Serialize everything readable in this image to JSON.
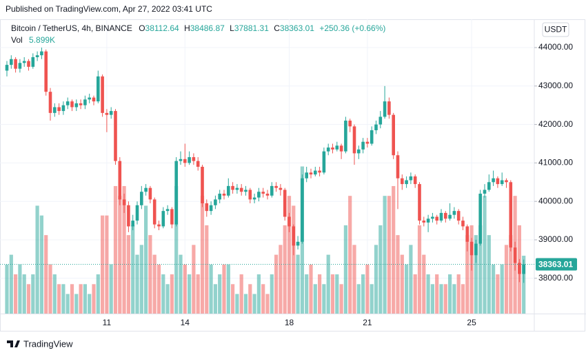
{
  "header": {
    "published": "Published on TradingView.com, Apr 27, 2022 03:41 UTC",
    "logo": "TradingView"
  },
  "chart_data": {
    "type": "candlestick",
    "title": "Bitcoin / TetherUS, 4h, BINANCE",
    "ohlc_letters": {
      "open": "O",
      "high": "H",
      "low": "L",
      "close": "C"
    },
    "change_label": "+250.36 (+0.66%)",
    "vol_legend": {
      "label": "Vol",
      "value_label": "5.899K"
    },
    "currency": "USDT",
    "up_color": "#26a69a",
    "down_color": "#ef5350",
    "open": [
      43400,
      43550,
      43700,
      43450,
      43600,
      43650,
      43500,
      43750,
      43800,
      43900,
      42850,
      42300,
      42450,
      42350,
      42500,
      42600,
      42450,
      42550,
      42500,
      42650,
      42700,
      42600,
      43250,
      42300,
      42250,
      42350,
      41050,
      40050,
      39900,
      39350,
      39500,
      39900,
      40250,
      40350,
      40050,
      39400,
      39350,
      39750,
      39800,
      39400,
      41050,
      41100,
      41000,
      41150,
      41050,
      40900,
      39950,
      39750,
      39900,
      40050,
      40200,
      40150,
      40400,
      40300,
      40350,
      40250,
      40300,
      40050,
      40100,
      40250,
      40200,
      40150,
      40400,
      40350,
      40300,
      39600,
      39350,
      38850,
      38950,
      40600,
      40750,
      40700,
      40800,
      40750,
      41300,
      41400,
      41350,
      41450,
      41300,
      42100,
      41950,
      41250,
      41350,
      41550,
      41500,
      41850,
      42000,
      42200,
      42600,
      42250,
      41200,
      40600,
      40450,
      40550,
      40650,
      40450,
      39500,
      39450,
      39550,
      39600,
      39500,
      39700,
      39550,
      39650,
      39750,
      39500,
      39350,
      38950,
      38600,
      38900,
      40200,
      40300,
      40500,
      40600,
      40450,
      40550,
      40500,
      38800,
      38400,
      38112.64
    ],
    "high": [
      43650,
      43800,
      43750,
      43700,
      43750,
      43700,
      43850,
      43900,
      44000,
      43950,
      42950,
      42550,
      42550,
      42600,
      42700,
      42650,
      42650,
      42650,
      42750,
      42800,
      42750,
      43400,
      43300,
      42400,
      42450,
      42400,
      41150,
      40200,
      40000,
      39650,
      40000,
      40400,
      40450,
      40400,
      40100,
      39500,
      39850,
      39900,
      39850,
      41150,
      41300,
      41500,
      41300,
      41250,
      41150,
      40950,
      40050,
      40000,
      40150,
      40300,
      40300,
      40600,
      40500,
      40450,
      40450,
      40400,
      40350,
      40200,
      40350,
      40350,
      40300,
      40500,
      40500,
      40450,
      40350,
      39700,
      39400,
      39100,
      40700,
      40900,
      40850,
      40900,
      40900,
      41400,
      41500,
      41500,
      41550,
      41500,
      42200,
      42150,
      42000,
      41450,
      41650,
      41650,
      41950,
      42100,
      42350,
      43000,
      42700,
      42300,
      41300,
      40700,
      40650,
      40750,
      40700,
      40500,
      39600,
      39650,
      39700,
      39650,
      39800,
      39750,
      39950,
      39850,
      39800,
      39600,
      39400,
      39050,
      39000,
      40300,
      40450,
      40700,
      40800,
      40650,
      40750,
      40600,
      40550,
      38950,
      38500,
      38486.87
    ],
    "low": [
      43250,
      43450,
      43350,
      43350,
      43500,
      43400,
      43450,
      43650,
      43700,
      42750,
      42100,
      42200,
      42250,
      42250,
      42400,
      42350,
      42350,
      42400,
      42400,
      42550,
      42500,
      42550,
      42200,
      41800,
      42150,
      40950,
      39900,
      39700,
      39200,
      39250,
      39400,
      39800,
      40150,
      39950,
      39300,
      39250,
      39300,
      39650,
      39300,
      39350,
      40950,
      40900,
      40950,
      40950,
      40800,
      39850,
      39600,
      39650,
      39800,
      39950,
      40050,
      40100,
      40200,
      40200,
      40150,
      40150,
      39950,
      39950,
      40000,
      40100,
      40050,
      40100,
      40250,
      40150,
      39500,
      39200,
      38600,
      38750,
      38900,
      40500,
      40600,
      40650,
      40650,
      40700,
      41200,
      41250,
      41300,
      41100,
      41250,
      41800,
      40950,
      41100,
      41250,
      41400,
      41450,
      41750,
      41900,
      42150,
      42150,
      41100,
      39800,
      40300,
      40350,
      40450,
      40350,
      39400,
      39350,
      39200,
      39450,
      39400,
      39450,
      39450,
      39500,
      39550,
      39400,
      39250,
      38700,
      38200,
      38400,
      38850,
      40100,
      40250,
      40400,
      40350,
      40400,
      40350,
      38700,
      38200,
      37900,
      37881.31
    ],
    "close": [
      43550,
      43700,
      43450,
      43600,
      43650,
      43500,
      43750,
      43800,
      43900,
      42850,
      42300,
      42450,
      42350,
      42500,
      42600,
      42450,
      42550,
      42500,
      42650,
      42700,
      42600,
      43250,
      42300,
      42250,
      42350,
      41050,
      40050,
      39900,
      39350,
      39500,
      39900,
      40250,
      40350,
      40050,
      39400,
      39350,
      39750,
      39800,
      39400,
      41050,
      41100,
      41000,
      41150,
      41050,
      40900,
      39950,
      39750,
      39900,
      40050,
      40200,
      40150,
      40400,
      40300,
      40350,
      40250,
      40300,
      40050,
      40100,
      40250,
      40200,
      40150,
      40400,
      40350,
      40300,
      39600,
      39350,
      38850,
      38950,
      40600,
      40750,
      40700,
      40800,
      40750,
      41300,
      41400,
      41350,
      41450,
      41300,
      42100,
      41950,
      41250,
      41350,
      41550,
      41500,
      41850,
      42000,
      42200,
      42600,
      42250,
      41200,
      40600,
      40450,
      40550,
      40650,
      40450,
      39500,
      39450,
      39550,
      39600,
      39500,
      39700,
      39550,
      39650,
      39750,
      39500,
      39350,
      38950,
      38600,
      38900,
      40200,
      40300,
      40500,
      40600,
      40450,
      40550,
      40500,
      38800,
      38400,
      38112.64,
      38363.01
    ],
    "volume": [
      5000,
      6000,
      4000,
      5000,
      4000,
      3000,
      4000,
      11000,
      10000,
      8000,
      5000,
      4000,
      3000,
      3000,
      2000,
      3000,
      2000,
      3000,
      3000,
      2000,
      3000,
      4000,
      10000,
      10000,
      5000,
      13000,
      12000,
      13000,
      8000,
      9000,
      6000,
      7000,
      11000,
      8000,
      6000,
      5000,
      4000,
      3000,
      4000,
      13000,
      6000,
      5000,
      4000,
      7000,
      4000,
      12000,
      9000,
      5000,
      3000,
      4000,
      5000,
      5000,
      3000,
      2000,
      4000,
      2000,
      3000,
      2000,
      4000,
      3000,
      2000,
      4000,
      6000,
      7000,
      9000,
      12000,
      11000,
      6000,
      15000,
      4000,
      5000,
      3000,
      4000,
      3000,
      6000,
      4000,
      4000,
      3000,
      9000,
      12000,
      7000,
      3000,
      4000,
      5000,
      3000,
      7000,
      9000,
      12000,
      12000,
      13000,
      8000,
      6000,
      5000,
      7000,
      4000,
      9000,
      6000,
      4000,
      3000,
      4000,
      3000,
      3000,
      4000,
      3000,
      4000,
      3000,
      8000,
      9000,
      8000,
      9000,
      12000,
      8000,
      5000,
      4000,
      5000,
      7000,
      8000,
      12000,
      9000,
      5899
    ],
    "ylim": [
      37082,
      44735
    ],
    "vlim": [
      0,
      30000
    ],
    "yticks": [
      {
        "value": 38000,
        "label": "38000.00"
      },
      {
        "value": 39000,
        "label": "39000.00"
      },
      {
        "value": 40000,
        "label": "40000.00"
      },
      {
        "value": 41000,
        "label": "41000.00"
      },
      {
        "value": 42000,
        "label": "42000.00"
      },
      {
        "value": 43000,
        "label": "43000.00"
      },
      {
        "value": 44000,
        "label": "44000.00"
      }
    ],
    "xticks": [
      {
        "candle": 23,
        "label": "11"
      },
      {
        "candle": 41,
        "label": "14"
      },
      {
        "candle": 65,
        "label": "18"
      },
      {
        "candle": 83,
        "label": "21"
      },
      {
        "candle": 107,
        "label": "25"
      }
    ],
    "grid": true
  }
}
